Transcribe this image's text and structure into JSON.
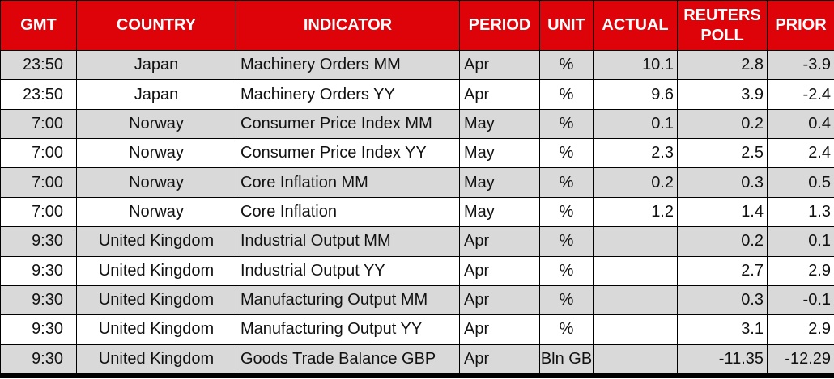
{
  "colors": {
    "header_bg": "#de0209",
    "header_text": "#ffffff",
    "row_alt_bg": "#d9d9d9",
    "row_bg": "#ffffff",
    "border": "#000000",
    "text": "#111111"
  },
  "chart_data": {
    "type": "table",
    "title": "Economic calendar: indicators with Reuters poll and prior values",
    "layout_hints": {
      "header_centered": true,
      "alternating_rows": true,
      "thick_bottom_border": true
    },
    "columns": [
      {
        "key": "gmt",
        "label": "GMT",
        "align": "right"
      },
      {
        "key": "country",
        "label": "COUNTRY",
        "align": "center"
      },
      {
        "key": "indicator",
        "label": "INDICATOR",
        "align": "left"
      },
      {
        "key": "period",
        "label": "PERIOD",
        "align": "left"
      },
      {
        "key": "unit",
        "label": "UNIT",
        "align": "center"
      },
      {
        "key": "actual",
        "label": "ACTUAL",
        "align": "right"
      },
      {
        "key": "poll",
        "label": "REUTERS POLL",
        "align": "right"
      },
      {
        "key": "prior",
        "label": "PRIOR",
        "align": "right"
      }
    ],
    "rows": [
      {
        "gmt": "23:50",
        "country": "Japan",
        "indicator": "Machinery Orders MM",
        "period": "Apr",
        "unit": "%",
        "actual": "10.1",
        "poll": "2.8",
        "prior": "-3.9"
      },
      {
        "gmt": "23:50",
        "country": "Japan",
        "indicator": "Machinery Orders YY",
        "period": "Apr",
        "unit": "%",
        "actual": "9.6",
        "poll": "3.9",
        "prior": "-2.4"
      },
      {
        "gmt": "7:00",
        "country": "Norway",
        "indicator": "Consumer Price Index MM",
        "period": "May",
        "unit": "%",
        "actual": "0.1",
        "poll": "0.2",
        "prior": "0.4"
      },
      {
        "gmt": "7:00",
        "country": "Norway",
        "indicator": "Consumer Price Index YY",
        "period": "May",
        "unit": "%",
        "actual": "2.3",
        "poll": "2.5",
        "prior": "2.4"
      },
      {
        "gmt": "7:00",
        "country": "Norway",
        "indicator": "Core Inflation MM",
        "period": "May",
        "unit": "%",
        "actual": "0.2",
        "poll": "0.3",
        "prior": "0.5"
      },
      {
        "gmt": "7:00",
        "country": "Norway",
        "indicator": "Core Inflation",
        "period": "May",
        "unit": "%",
        "actual": "1.2",
        "poll": "1.4",
        "prior": "1.3"
      },
      {
        "gmt": "9:30",
        "country": "United Kingdom",
        "indicator": "Industrial Output MM",
        "period": "Apr",
        "unit": "%",
        "actual": "",
        "poll": "0.2",
        "prior": "0.1"
      },
      {
        "gmt": "9:30",
        "country": "United Kingdom",
        "indicator": "Industrial Output YY",
        "period": "Apr",
        "unit": "%",
        "actual": "",
        "poll": "2.7",
        "prior": "2.9"
      },
      {
        "gmt": "9:30",
        "country": "United Kingdom",
        "indicator": "Manufacturing Output MM",
        "period": "Apr",
        "unit": "%",
        "actual": "",
        "poll": "0.3",
        "prior": "-0.1"
      },
      {
        "gmt": "9:30",
        "country": "United Kingdom",
        "indicator": "Manufacturing Output YY",
        "period": "Apr",
        "unit": "%",
        "actual": "",
        "poll": "3.1",
        "prior": "2.9"
      },
      {
        "gmt": "9:30",
        "country": "United Kingdom",
        "indicator": "Goods Trade Balance GBP",
        "period": "Apr",
        "unit": "Bln GB",
        "actual": "",
        "poll": "-11.35",
        "prior": "-12.29"
      }
    ]
  }
}
